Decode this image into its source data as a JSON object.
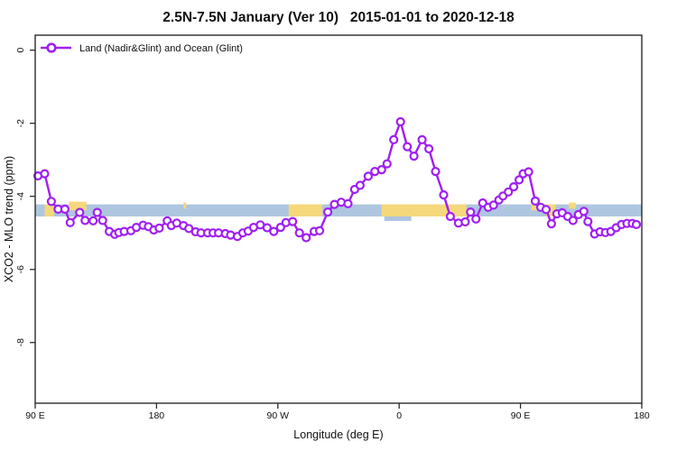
{
  "figure": {
    "title": "2.5N-7.5N January (Ver 10)   2015-01-01 to 2020-12-18",
    "legend_label": "Land (Nadir&Glint) and Ocean (Glint)",
    "xlabel": "Longitude (deg E)",
    "ylabel": "XCO2 - MLO trend (ppm)",
    "frame_color": "#2b2b2b",
    "background": "#ffffff"
  },
  "chart_data": {
    "type": "line",
    "title": "2.5N-7.5N January (Ver 10)  2015-01-01 to 2020-12-18",
    "xlabel": "Longitude (deg E)",
    "ylabel": "XCO2 - MLO trend (ppm)",
    "xlim": [
      90,
      540
    ],
    "ylim": [
      -9.66,
      0.41
    ],
    "grid": false,
    "legend_position": "top-left",
    "x_ticks": [
      {
        "value": 90,
        "label": "90 E"
      },
      {
        "value": 180,
        "label": "180"
      },
      {
        "value": 270,
        "label": "90 W"
      },
      {
        "value": 360,
        "label": "0"
      },
      {
        "value": 450,
        "label": "90 E"
      },
      {
        "value": 540,
        "label": "180"
      }
    ],
    "y_ticks": [
      {
        "value": 0,
        "label": "0"
      },
      {
        "value": -2,
        "label": "-2"
      },
      {
        "value": -4,
        "label": "-4"
      },
      {
        "value": -6,
        "label": "-6"
      },
      {
        "value": -8,
        "label": "-8"
      }
    ],
    "series": [
      {
        "name": "Land (Nadir&Glint) and Ocean (Glint)",
        "color": "#a020f0",
        "marker": "open-circle",
        "marker_fill": "#ffffff",
        "points": [
          [
            92,
            -3.44
          ],
          [
            97,
            -3.38
          ],
          [
            102,
            -4.14
          ],
          [
            107,
            -4.35
          ],
          [
            112,
            -4.35
          ],
          [
            116,
            -4.72
          ],
          [
            123,
            -4.44
          ],
          [
            127,
            -4.66
          ],
          [
            133,
            -4.67
          ],
          [
            136,
            -4.44
          ],
          [
            140,
            -4.66
          ],
          [
            145,
            -4.96
          ],
          [
            149,
            -5.04
          ],
          [
            152,
            -4.99
          ],
          [
            156,
            -4.96
          ],
          [
            161,
            -4.94
          ],
          [
            165,
            -4.85
          ],
          [
            170,
            -4.79
          ],
          [
            174,
            -4.83
          ],
          [
            178,
            -4.92
          ],
          [
            182,
            -4.87
          ],
          [
            188,
            -4.67
          ],
          [
            191,
            -4.8
          ],
          [
            195,
            -4.73
          ],
          [
            200,
            -4.8
          ],
          [
            204,
            -4.88
          ],
          [
            209,
            -4.97
          ],
          [
            213,
            -5.0
          ],
          [
            218,
            -5.0
          ],
          [
            222,
            -5.0
          ],
          [
            226,
            -5.0
          ],
          [
            231,
            -5.02
          ],
          [
            235,
            -5.06
          ],
          [
            240,
            -5.1
          ],
          [
            244,
            -5.0
          ],
          [
            248,
            -4.95
          ],
          [
            252,
            -4.85
          ],
          [
            257,
            -4.78
          ],
          [
            262,
            -4.86
          ],
          [
            267,
            -4.96
          ],
          [
            272,
            -4.85
          ],
          [
            276,
            -4.72
          ],
          [
            281,
            -4.69
          ],
          [
            286,
            -5.0
          ],
          [
            291,
            -5.13
          ],
          [
            297,
            -4.96
          ],
          [
            301,
            -4.94
          ],
          [
            307,
            -4.43
          ],
          [
            312,
            -4.22
          ],
          [
            317,
            -4.16
          ],
          [
            322,
            -4.2
          ],
          [
            327,
            -3.81
          ],
          [
            331,
            -3.7
          ],
          [
            337,
            -3.45
          ],
          [
            342,
            -3.32
          ],
          [
            347,
            -3.27
          ],
          [
            351,
            -3.11
          ],
          [
            356,
            -2.45
          ],
          [
            361,
            -1.96
          ],
          [
            366,
            -2.64
          ],
          [
            371,
            -2.9
          ],
          [
            377,
            -2.45
          ],
          [
            382,
            -2.7
          ],
          [
            387,
            -3.32
          ],
          [
            393,
            -3.96
          ],
          [
            398,
            -4.55
          ],
          [
            404,
            -4.73
          ],
          [
            409,
            -4.7
          ],
          [
            413,
            -4.43
          ],
          [
            417,
            -4.62
          ],
          [
            422,
            -4.18
          ],
          [
            426,
            -4.3
          ],
          [
            430,
            -4.24
          ],
          [
            434,
            -4.1
          ],
          [
            437,
            -3.99
          ],
          [
            441,
            -3.88
          ],
          [
            445,
            -3.74
          ],
          [
            449,
            -3.55
          ],
          [
            452,
            -3.38
          ],
          [
            456,
            -3.33
          ],
          [
            461,
            -4.13
          ],
          [
            465,
            -4.3
          ],
          [
            469,
            -4.36
          ],
          [
            473,
            -4.75
          ],
          [
            477,
            -4.48
          ],
          [
            481,
            -4.45
          ],
          [
            485,
            -4.55
          ],
          [
            489,
            -4.66
          ],
          [
            493,
            -4.5
          ],
          [
            497,
            -4.41
          ],
          [
            500,
            -4.69
          ],
          [
            505,
            -5.03
          ],
          [
            509,
            -4.97
          ],
          [
            513,
            -4.99
          ],
          [
            517,
            -4.96
          ],
          [
            521,
            -4.86
          ],
          [
            525,
            -4.77
          ],
          [
            529,
            -4.74
          ],
          [
            533,
            -4.74
          ],
          [
            536,
            -4.77
          ]
        ]
      }
    ],
    "map_band": {
      "description": "land(yellow)/ocean(blue) longitude strip",
      "top_value": -4.22,
      "bottom_value": -4.55,
      "ocean_color": "#aec6e0",
      "land_color": "#f6d87c",
      "land_segments": [
        {
          "from": 97,
          "to": 104,
          "style": "full"
        },
        {
          "from": 115,
          "to": 128,
          "style": "top"
        },
        {
          "from": 200,
          "to": 202,
          "style": "sliver"
        },
        {
          "from": 278,
          "to": 303,
          "style": "full"
        },
        {
          "from": 347,
          "to": 410,
          "style": "full"
        },
        {
          "from": 458,
          "to": 465,
          "style": "top"
        },
        {
          "from": 469,
          "to": 476,
          "style": "full"
        },
        {
          "from": 486,
          "to": 491,
          "style": "sliver"
        }
      ],
      "ocean_notches": [
        {
          "from": 349,
          "to": 369
        }
      ]
    }
  }
}
